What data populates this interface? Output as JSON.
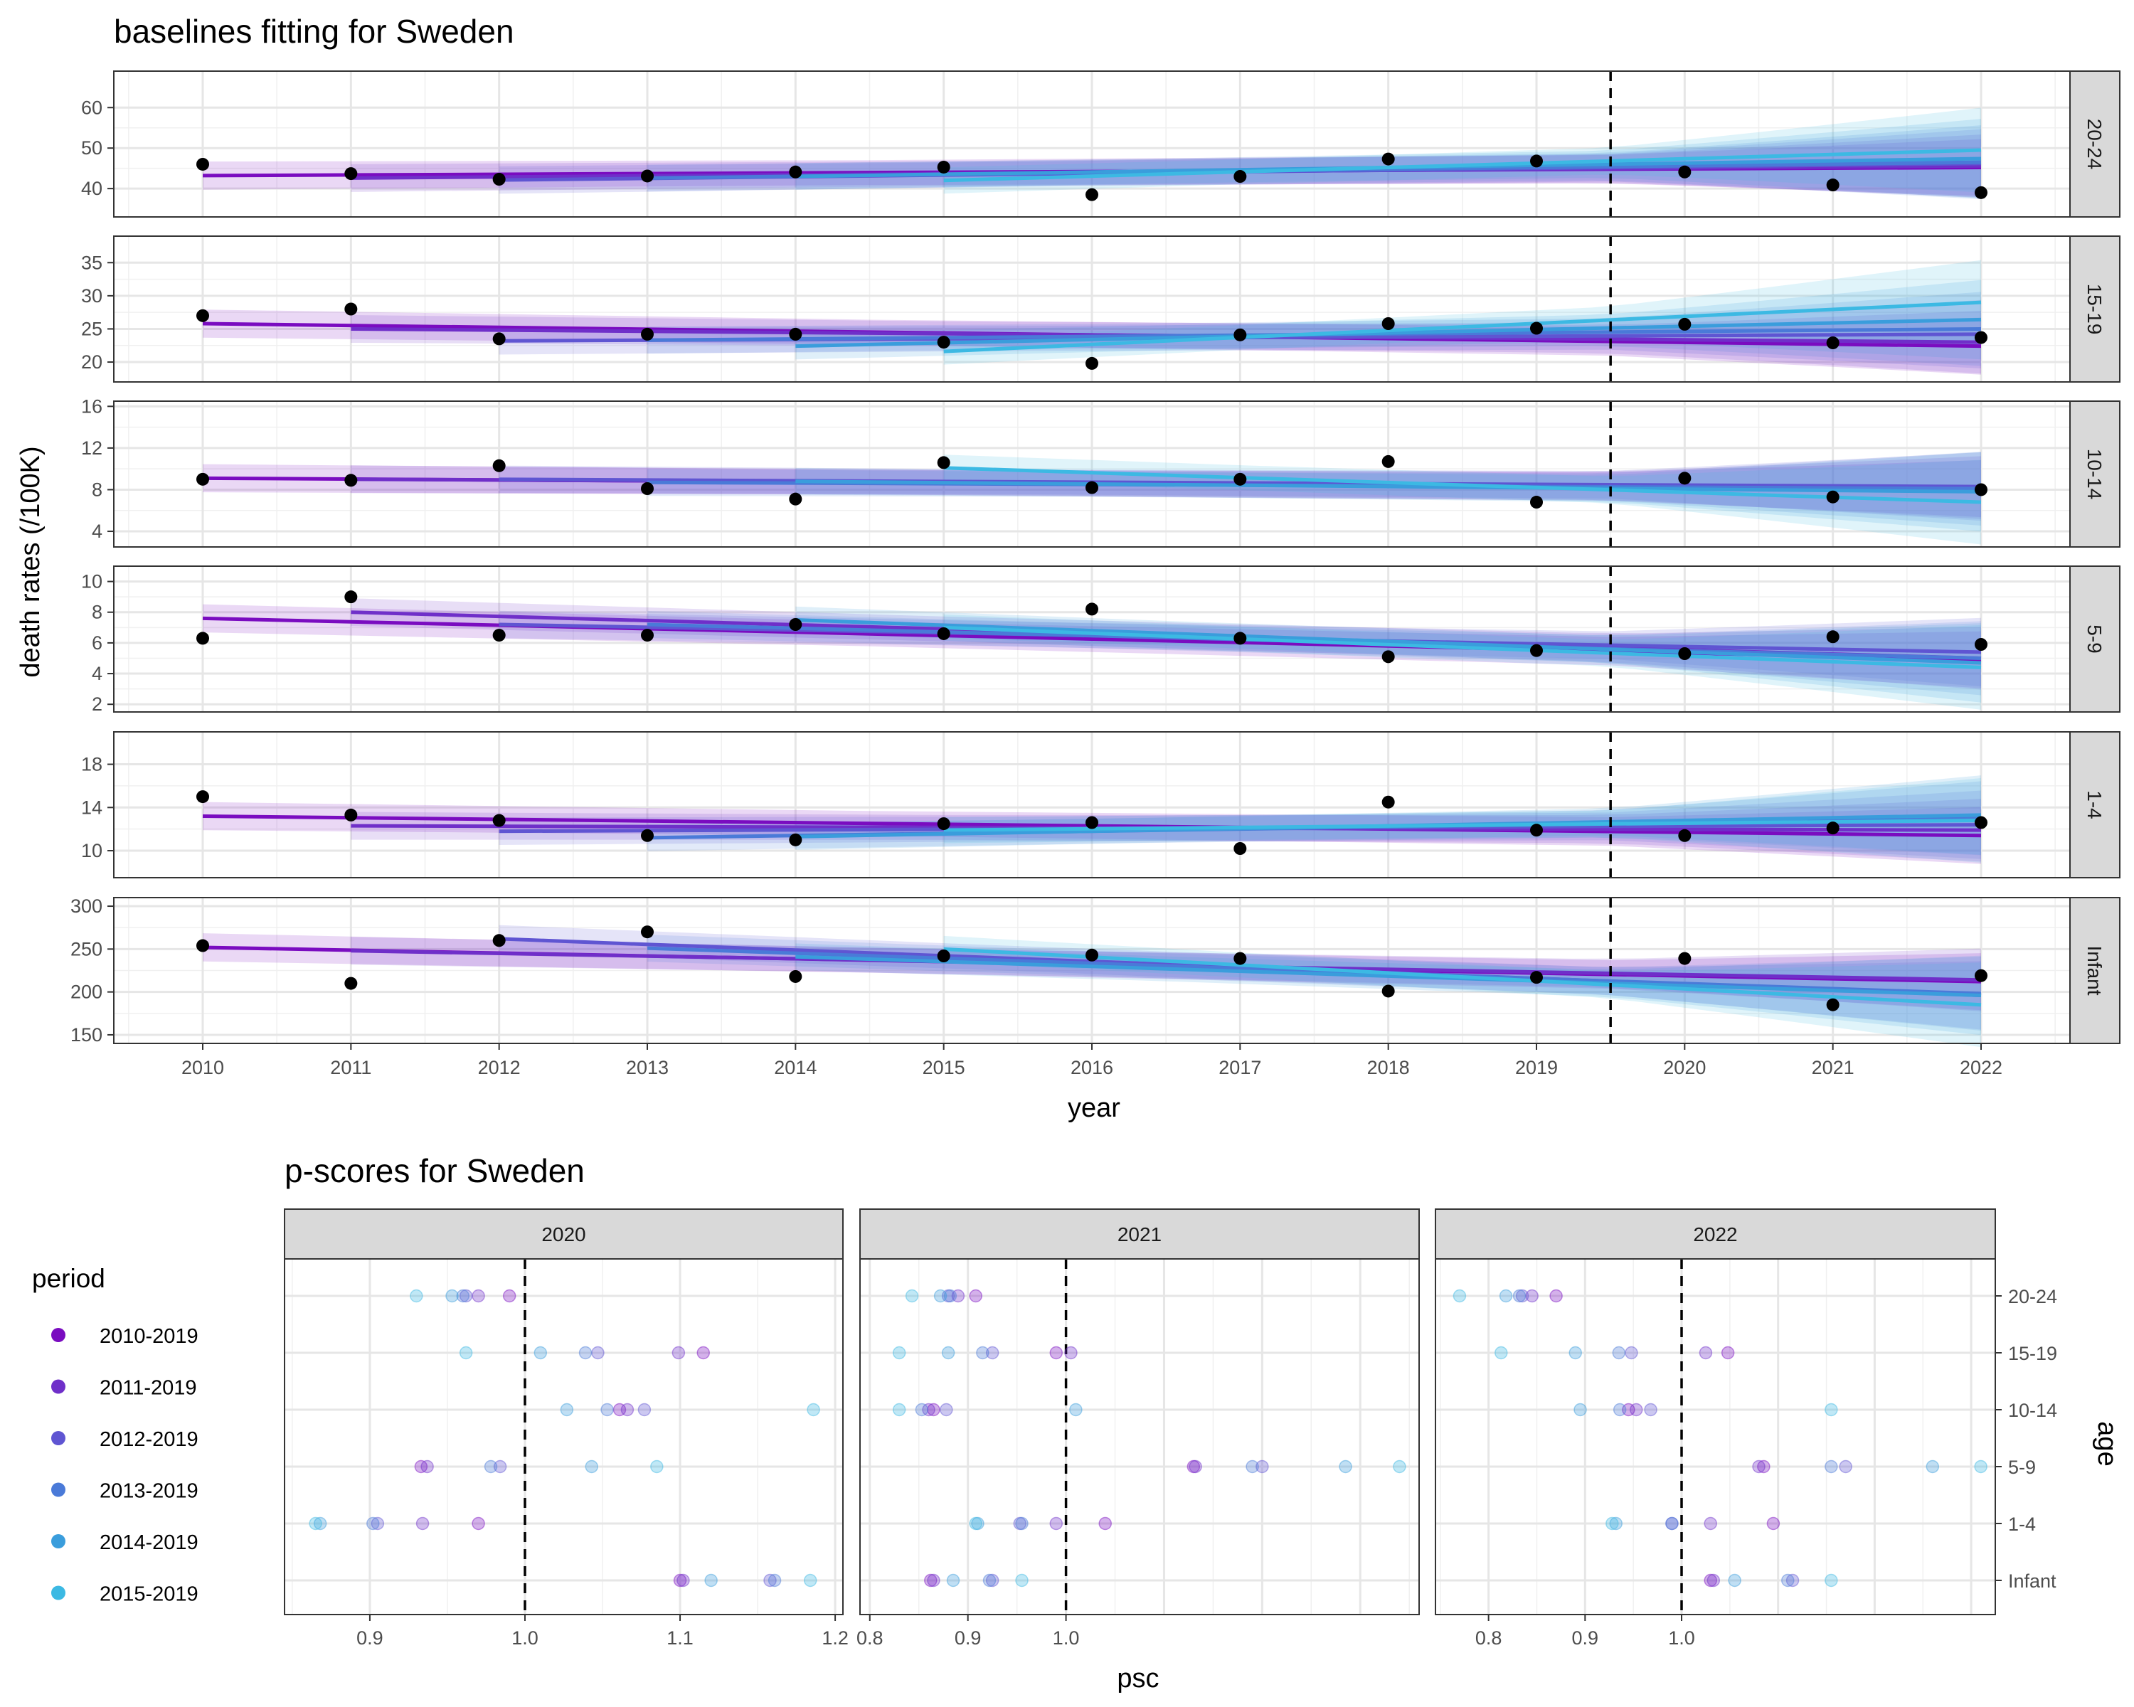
{
  "chart_data": [
    {
      "type": "line",
      "title": "baselines fitting for Sweden",
      "xlabel": "year",
      "ylabel": "death rates (/100K)",
      "x_ticks": [
        "2010",
        "2011",
        "2012",
        "2013",
        "2014",
        "2015",
        "2016",
        "2017",
        "2018",
        "2019",
        "2020",
        "2021",
        "2022"
      ],
      "xlim": [
        2009.4,
        2022.6
      ],
      "cutoff": 2019.5,
      "periods": [
        {
          "name": "2010-2019",
          "start": 2010,
          "color": "#7a0cc0"
        },
        {
          "name": "2011-2019",
          "start": 2011,
          "color": "#6f2fc9"
        },
        {
          "name": "2012-2019",
          "start": 2012,
          "color": "#5f55d2"
        },
        {
          "name": "2013-2019",
          "start": 2013,
          "color": "#4a7ad8"
        },
        {
          "name": "2014-2019",
          "start": 2014,
          "color": "#3a9ddc"
        },
        {
          "name": "2015-2019",
          "start": 2015,
          "color": "#3cb9e3"
        }
      ],
      "panels": [
        {
          "label": "20-24",
          "ylim": [
            33,
            69
          ],
          "ticks": [
            40,
            50,
            60
          ],
          "observed": [
            46,
            43.7,
            42.3,
            43.1,
            44.1,
            45.3,
            38.5,
            43,
            47.3,
            46.8,
            44.1,
            40.9,
            39
          ],
          "fits": [
            {
              "period": "2010-2019",
              "from": 43.2,
              "to": 45.2
            },
            {
              "period": "2011-2019",
              "from": 42.6,
              "to": 45.6
            },
            {
              "period": "2012-2019",
              "from": 42.1,
              "to": 46.2
            },
            {
              "period": "2013-2019",
              "from": 42.6,
              "to": 46.5
            },
            {
              "period": "2014-2019",
              "from": 43.0,
              "to": 47.4
            },
            {
              "period": "2015-2019",
              "from": 42.0,
              "to": 49.5
            }
          ]
        },
        {
          "label": "15-19",
          "ylim": [
            17,
            39
          ],
          "ticks": [
            20,
            25,
            30,
            35
          ],
          "observed": [
            27,
            28,
            23.5,
            24.2,
            24.2,
            23,
            19.8,
            24.1,
            25.8,
            25.1,
            25.7,
            22.9,
            23.7
          ],
          "fits": [
            {
              "period": "2010-2019",
              "from": 25.8,
              "to": 22.4
            },
            {
              "period": "2011-2019",
              "from": 25.0,
              "to": 23.0
            },
            {
              "period": "2012-2019",
              "from": 23.2,
              "to": 24.2
            },
            {
              "period": "2013-2019",
              "from": 23.3,
              "to": 25.0
            },
            {
              "period": "2014-2019",
              "from": 22.4,
              "to": 26.4
            },
            {
              "period": "2015-2019",
              "from": 21.6,
              "to": 29.0
            }
          ]
        },
        {
          "label": "10-14",
          "ylim": [
            2.5,
            16.5
          ],
          "ticks": [
            4,
            8,
            12,
            16
          ],
          "observed": [
            9,
            8.9,
            10.3,
            8.1,
            7.1,
            10.6,
            8.2,
            9,
            10.7,
            6.8,
            9.1,
            7.3,
            8
          ],
          "fits": [
            {
              "period": "2010-2019",
              "from": 9.1,
              "to": 8.1
            },
            {
              "period": "2011-2019",
              "from": 9.0,
              "to": 8.2
            },
            {
              "period": "2012-2019",
              "from": 9.0,
              "to": 8.3
            },
            {
              "period": "2013-2019",
              "from": 8.7,
              "to": 8.1
            },
            {
              "period": "2014-2019",
              "from": 8.8,
              "to": 7.8
            },
            {
              "period": "2015-2019",
              "from": 10.1,
              "to": 6.8
            }
          ]
        },
        {
          "label": "5-9",
          "ylim": [
            1.5,
            11
          ],
          "ticks": [
            2,
            4,
            6,
            8,
            10
          ],
          "observed": [
            6.3,
            9,
            6.5,
            6.5,
            7.2,
            6.6,
            8.2,
            6.3,
            5.1,
            5.5,
            5.3,
            6.4,
            5.9
          ],
          "fits": [
            {
              "period": "2010-2019",
              "from": 7.6,
              "to": 4.9
            },
            {
              "period": "2011-2019",
              "from": 8.0,
              "to": 5.0
            },
            {
              "period": "2012-2019",
              "from": 7.2,
              "to": 5.4
            },
            {
              "period": "2013-2019",
              "from": 7.2,
              "to": 5.0
            },
            {
              "period": "2014-2019",
              "from": 7.5,
              "to": 4.7
            },
            {
              "period": "2015-2019",
              "from": 7.0,
              "to": 4.4
            }
          ]
        },
        {
          "label": "1-4",
          "ylim": [
            7.5,
            21
          ],
          "ticks": [
            10,
            14,
            18
          ],
          "observed": [
            15,
            13.3,
            12.8,
            11.4,
            11,
            12.5,
            12.6,
            10.2,
            14.5,
            11.9,
            11.4,
            12.1,
            12.6
          ],
          "fits": [
            {
              "period": "2010-2019",
              "from": 13.2,
              "to": 11.4
            },
            {
              "period": "2011-2019",
              "from": 12.3,
              "to": 11.9
            },
            {
              "period": "2012-2019",
              "from": 11.8,
              "to": 12.4
            },
            {
              "period": "2013-2019",
              "from": 11.2,
              "to": 13.0
            },
            {
              "period": "2014-2019",
              "from": 11.3,
              "to": 13.3
            },
            {
              "period": "2015-2019",
              "from": 11.9,
              "to": 12.8
            }
          ]
        },
        {
          "label": "Infant",
          "ylim": [
            140,
            310
          ],
          "ticks": [
            150,
            200,
            250,
            300
          ],
          "observed": [
            254,
            210,
            260,
            270,
            218,
            242,
            243,
            239,
            201,
            217,
            239,
            185,
            219
          ],
          "fits": [
            {
              "period": "2010-2019",
              "from": 252,
              "to": 212
            },
            {
              "period": "2011-2019",
              "from": 248,
              "to": 214
            },
            {
              "period": "2012-2019",
              "from": 262,
              "to": 196
            },
            {
              "period": "2013-2019",
              "from": 251,
              "to": 198
            },
            {
              "period": "2014-2019",
              "from": 241,
              "to": 196
            },
            {
              "period": "2015-2019",
              "from": 250,
              "to": 185
            }
          ]
        }
      ]
    },
    {
      "type": "scatter",
      "title": "p-scores for Sweden",
      "xlabel": "psc",
      "ylabel": "age",
      "legend_title": "period",
      "age_groups": [
        "20-24",
        "15-19",
        "10-14",
        "5-9",
        "1-4",
        "Infant"
      ],
      "facets": [
        {
          "label": "2020",
          "xlim": [
            0.845,
            1.205
          ],
          "ticks": [
            {
              "v": 0.9,
              "t": "0.9"
            },
            {
              "v": 1.0,
              "t": "1.0"
            },
            {
              "v": 1.1,
              "t": "1.1"
            },
            {
              "v": 1.2,
              "t": "1.2"
            }
          ],
          "values": {
            "20-24": [
              0.99,
              0.97,
              0.962,
              0.96,
              0.953,
              0.93
            ],
            "15-19": [
              1.115,
              1.099,
              1.047,
              1.039,
              1.01,
              0.962
            ],
            "10-14": [
              1.061,
              1.066,
              1.077,
              1.053,
              1.027,
              1.186
            ],
            "5-9": [
              0.933,
              0.937,
              0.984,
              0.978,
              1.043,
              1.085
            ],
            "1-4": [
              0.97,
              0.934,
              0.905,
              0.902,
              0.868,
              0.865
            ],
            "Infant": [
              1.1,
              1.102,
              1.158,
              1.161,
              1.12,
              1.184
            ]
          }
        },
        {
          "label": "2021",
          "xlim": [
            0.79,
            1.36
          ],
          "ticks": [
            {
              "v": 0.8,
              "t": "0.8"
            },
            {
              "v": 0.9,
              "t": "0.9"
            },
            {
              "v": 1.0,
              "t": "1.0"
            }
          ],
          "values": {
            "20-24": [
              0.908,
              0.89,
              0.88,
              0.882,
              0.872,
              0.843
            ],
            "15-19": [
              0.99,
              1.005,
              0.925,
              0.915,
              0.88,
              0.83
            ],
            "10-14": [
              0.865,
              0.86,
              0.878,
              0.853,
              1.01,
              0.83
            ],
            "5-9": [
              1.13,
              1.132,
              1.2,
              1.19,
              1.285,
              1.34
            ],
            "1-4": [
              1.04,
              0.99,
              0.953,
              0.955,
              0.91,
              0.908
            ],
            "Infant": [
              0.862,
              0.865,
              0.925,
              0.922,
              0.885,
              0.955
            ]
          }
        },
        {
          "label": "2022",
          "xlim": [
            0.745,
            1.325
          ],
          "ticks": [
            {
              "v": 0.8,
              "t": "0.8"
            },
            {
              "v": 0.9,
              "t": "0.9"
            },
            {
              "v": 1.0,
              "t": "1.0"
            }
          ],
          "values": {
            "20-24": [
              0.87,
              0.845,
              0.835,
              0.832,
              0.818,
              0.77
            ],
            "15-19": [
              1.048,
              1.025,
              0.948,
              0.935,
              0.89,
              0.813
            ],
            "10-14": [
              0.945,
              0.953,
              0.968,
              0.936,
              0.895,
              1.155
            ],
            "5-9": [
              1.085,
              1.08,
              1.17,
              1.155,
              1.26,
              1.31
            ],
            "1-4": [
              1.095,
              1.03,
              0.99,
              0.99,
              0.932,
              0.928
            ],
            "Infant": [
              1.03,
              1.033,
              1.115,
              1.11,
              1.055,
              1.155
            ]
          }
        }
      ]
    }
  ]
}
